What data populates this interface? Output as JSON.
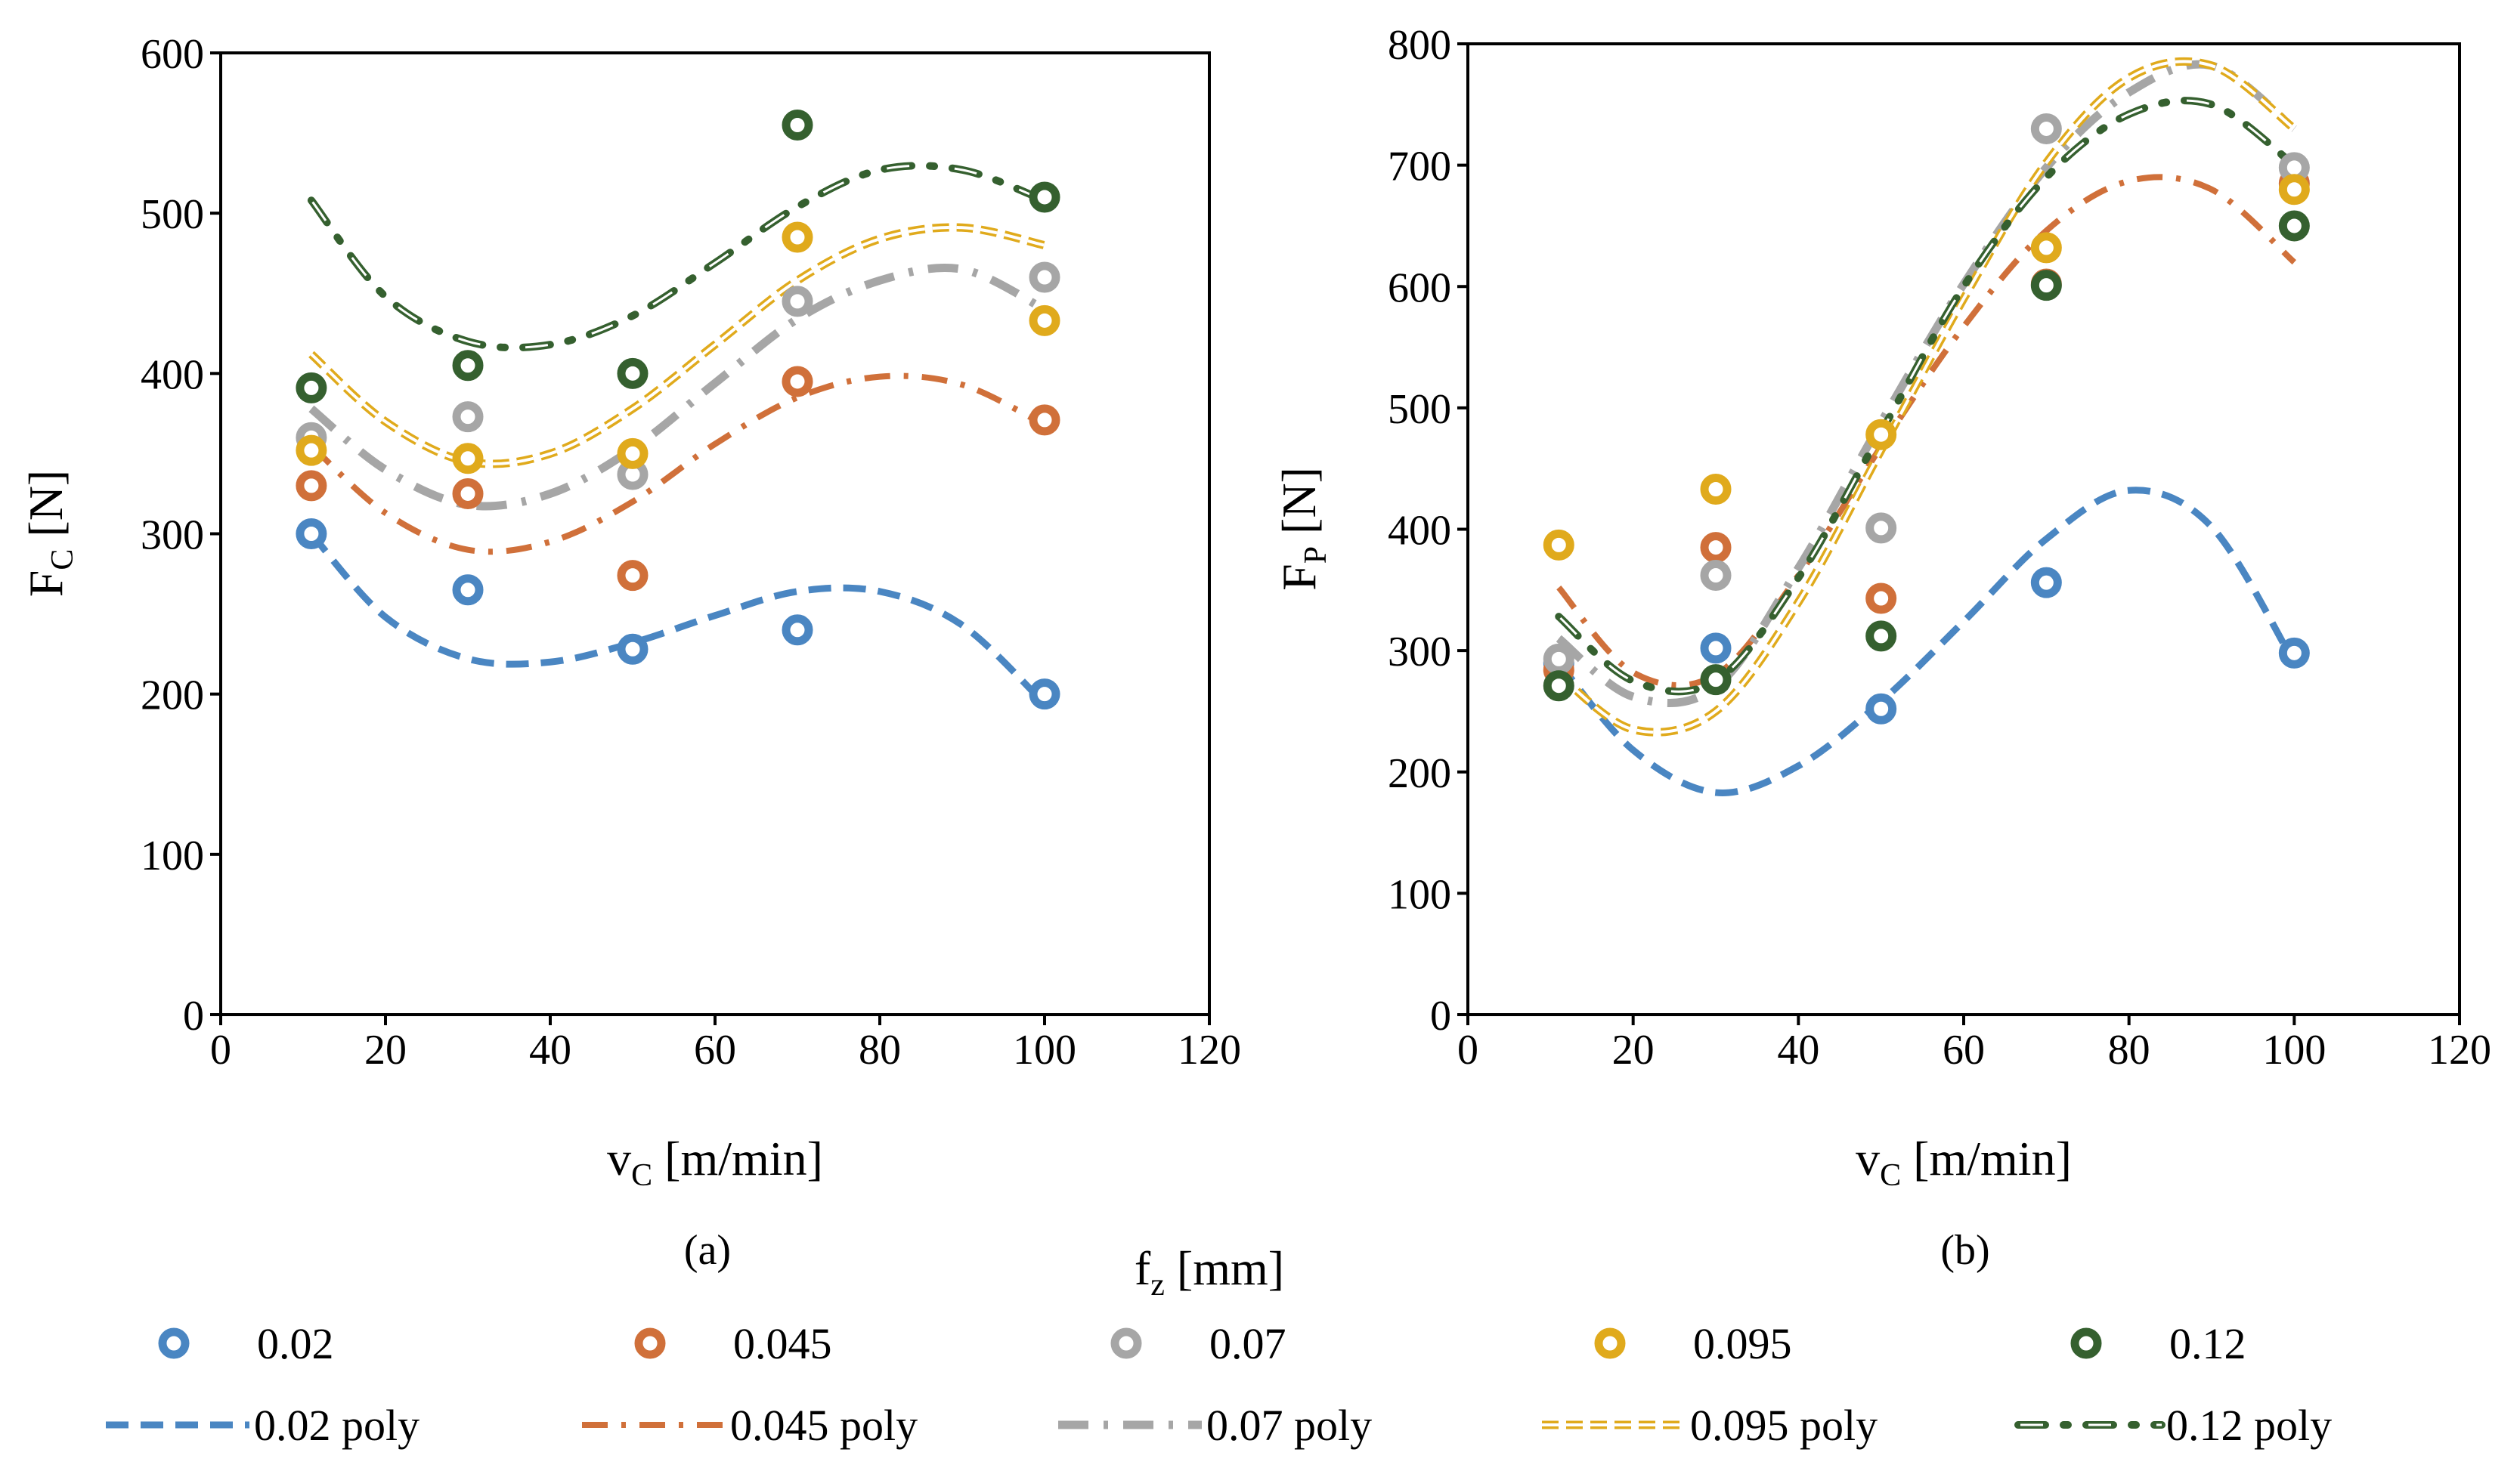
{
  "figure": {
    "legend_title": "f",
    "legend_title_sub": "z",
    "legend_title_unit": " [mm]"
  },
  "colors": {
    "0.02": "#4a86c2",
    "0.045": "#d0703a",
    "0.07": "#a6a6a6",
    "0.095": "#e0aa1c",
    "0.12": "#35602f",
    "axis": "#000000"
  },
  "legend": {
    "markers": [
      "0.02",
      "0.045",
      "0.07",
      "0.095",
      "0.12"
    ],
    "lines": [
      "0.02 poly",
      "0.045 poly",
      "0.07 poly",
      "0.095 poly",
      "0.12 poly"
    ]
  },
  "chart_data": [
    {
      "type": "scatter",
      "panel_label": "(a)",
      "xlabel": "v",
      "xlabel_sub": "C",
      "xlabel_unit": " [m/min]",
      "ylabel": "F",
      "ylabel_sub": "C",
      "ylabel_unit": " [N]",
      "xlim": [
        0,
        120
      ],
      "ylim": [
        0,
        600
      ],
      "xticks": [
        0,
        20,
        40,
        60,
        80,
        100,
        120
      ],
      "yticks": [
        0,
        100,
        200,
        300,
        400,
        500,
        600
      ],
      "x": [
        11,
        30,
        50,
        70,
        100
      ],
      "series": [
        {
          "name": "0.02",
          "values": [
            300,
            265,
            228,
            240,
            200
          ]
        },
        {
          "name": "0.045",
          "values": [
            330,
            325,
            274,
            395,
            371
          ]
        },
        {
          "name": "0.07",
          "values": [
            360,
            373,
            337,
            445,
            460
          ]
        },
        {
          "name": "0.095",
          "values": [
            352,
            347,
            350,
            485,
            433
          ]
        },
        {
          "name": "0.12",
          "values": [
            391,
            405,
            400,
            555,
            510
          ]
        }
      ],
      "fits": [
        {
          "name": "0.02 poly",
          "x": [
            11,
            20,
            30,
            40,
            50,
            60,
            70,
            80,
            90,
            100
          ],
          "values": [
            300,
            248,
            222,
            220,
            232,
            249,
            264,
            264,
            243,
            194
          ]
        },
        {
          "name": "0.045 poly",
          "x": [
            11,
            20,
            30,
            40,
            50,
            60,
            70,
            80,
            90,
            100
          ],
          "values": [
            355,
            313,
            290,
            295,
            320,
            356,
            385,
            398,
            393,
            368
          ]
        },
        {
          "name": "0.07 poly",
          "x": [
            11,
            20,
            30,
            40,
            50,
            60,
            70,
            80,
            90,
            100
          ],
          "values": [
            378,
            340,
            318,
            325,
            353,
            394,
            434,
            458,
            465,
            440
          ]
        },
        {
          "name": "0.095 poly",
          "x": [
            11,
            20,
            30,
            40,
            50,
            60,
            70,
            80,
            90,
            100
          ],
          "values": [
            412,
            370,
            345,
            350,
            378,
            418,
            458,
            484,
            491,
            480
          ]
        },
        {
          "name": "0.12 poly",
          "x": [
            11,
            20,
            30,
            40,
            50,
            60,
            70,
            80,
            90,
            100
          ],
          "values": [
            508,
            448,
            420,
            418,
            436,
            469,
            504,
            527,
            527,
            508
          ]
        }
      ]
    },
    {
      "type": "scatter",
      "panel_label": "(b)",
      "xlabel": "v",
      "xlabel_sub": "C",
      "xlabel_unit": " [m/min]",
      "ylabel": "F",
      "ylabel_sub": "P",
      "ylabel_unit": " [N]",
      "xlim": [
        0,
        120
      ],
      "ylim": [
        0,
        800
      ],
      "xticks": [
        0,
        20,
        40,
        60,
        80,
        100,
        120
      ],
      "yticks": [
        0,
        100,
        200,
        300,
        400,
        500,
        600,
        700,
        800
      ],
      "x": [
        11,
        30,
        50,
        70,
        100
      ],
      "series": [
        {
          "name": "0.02",
          "values": [
            290,
            302,
            252,
            356,
            298
          ]
        },
        {
          "name": "0.045",
          "values": [
            284,
            385,
            343,
            602,
            685
          ]
        },
        {
          "name": "0.07",
          "values": [
            293,
            362,
            401,
            730,
            698
          ]
        },
        {
          "name": "0.095",
          "values": [
            387,
            433,
            478,
            632,
            680
          ]
        },
        {
          "name": "0.12",
          "values": [
            271,
            276,
            312,
            601,
            650
          ]
        }
      ],
      "fits": [
        {
          "name": "0.02 poly",
          "x": [
            11,
            20,
            30,
            40,
            50,
            60,
            70,
            80,
            90,
            100
          ],
          "values": [
            290,
            218,
            183,
            205,
            258,
            324,
            392,
            432,
            402,
            290
          ]
        },
        {
          "name": "0.045 poly",
          "x": [
            11,
            20,
            30,
            40,
            50,
            60,
            70,
            80,
            90,
            100
          ],
          "values": [
            352,
            282,
            280,
            362,
            468,
            567,
            646,
            687,
            680,
            620
          ]
        },
        {
          "name": "0.07 poly",
          "x": [
            11,
            20,
            30,
            40,
            50,
            60,
            70,
            80,
            90,
            100
          ],
          "values": [
            310,
            262,
            270,
            368,
            488,
            602,
            698,
            760,
            782,
            730
          ]
        },
        {
          "name": "0.095 poly",
          "x": [
            11,
            20,
            30,
            40,
            50,
            60,
            70,
            80,
            90,
            100
          ],
          "values": [
            280,
            235,
            250,
            340,
            465,
            590,
            702,
            772,
            782,
            730
          ]
        },
        {
          "name": "0.12 poly",
          "x": [
            11,
            20,
            30,
            40,
            50,
            60,
            70,
            80,
            90,
            100
          ],
          "values": [
            328,
            275,
            275,
            360,
            480,
            600,
            690,
            742,
            750,
            700
          ]
        }
      ]
    }
  ]
}
